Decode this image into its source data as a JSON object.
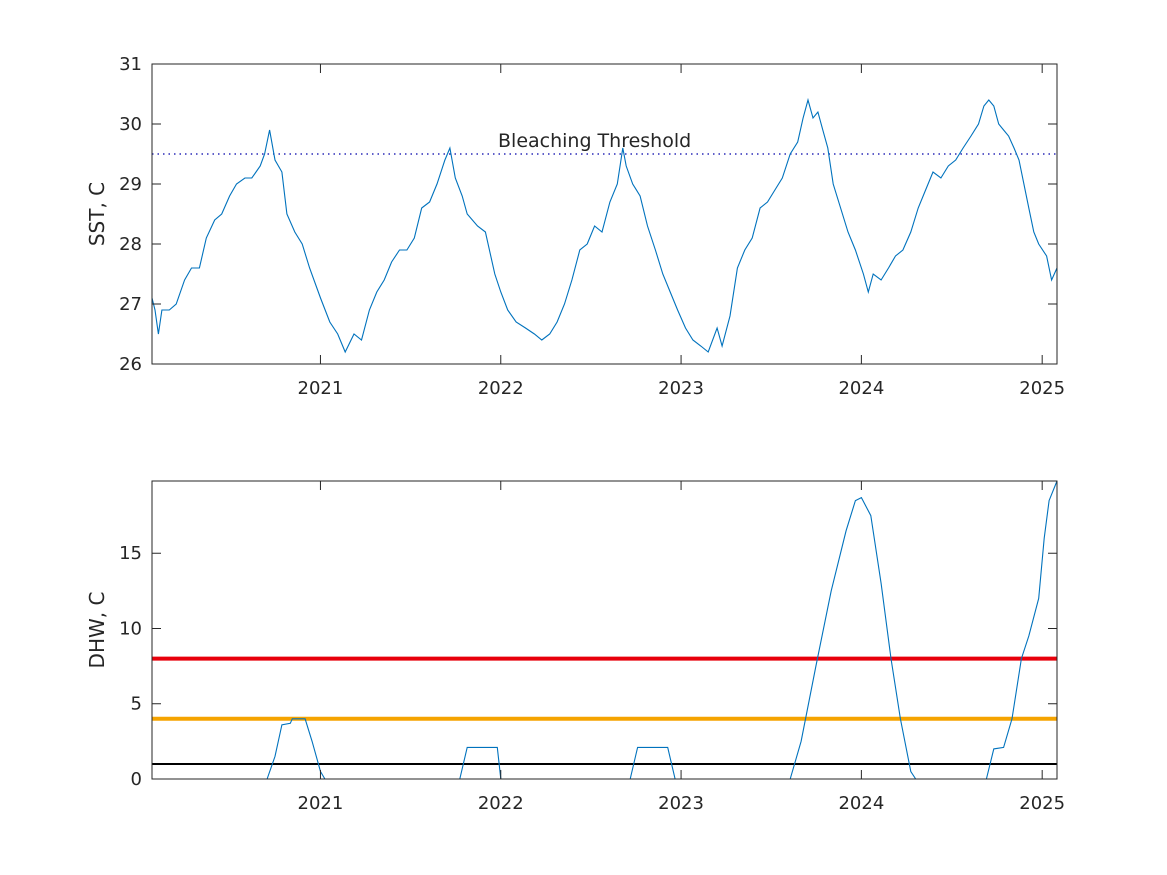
{
  "chart_data": [
    {
      "type": "line",
      "ylabel": "SST, C",
      "xlabel": "",
      "title": "",
      "x_range": [
        "2020-01-26",
        "2025-01-31"
      ],
      "ylim": [
        26,
        31
      ],
      "x_ticks": [
        {
          "date": "2021-01-01",
          "label": "2021"
        },
        {
          "date": "2022-01-01",
          "label": "2022"
        },
        {
          "date": "2023-01-01",
          "label": "2023"
        },
        {
          "date": "2024-01-01",
          "label": "2024"
        },
        {
          "date": "2025-01-01",
          "label": "2025"
        }
      ],
      "y_ticks": [
        26,
        27,
        28,
        29,
        30,
        31
      ],
      "series": [
        {
          "color": "#0072BD",
          "points": [
            [
              "2020-01-26",
              27.1
            ],
            [
              "2020-02-01",
              26.9
            ],
            [
              "2020-02-08",
              26.5
            ],
            [
              "2020-02-15",
              26.9
            ],
            [
              "2020-03-01",
              26.9
            ],
            [
              "2020-03-15",
              27.0
            ],
            [
              "2020-04-01",
              27.4
            ],
            [
              "2020-04-15",
              27.6
            ],
            [
              "2020-05-01",
              27.6
            ],
            [
              "2020-05-15",
              28.1
            ],
            [
              "2020-06-01",
              28.4
            ],
            [
              "2020-06-15",
              28.5
            ],
            [
              "2020-07-01",
              28.8
            ],
            [
              "2020-07-15",
              29.0
            ],
            [
              "2020-08-01",
              29.1
            ],
            [
              "2020-08-15",
              29.1
            ],
            [
              "2020-09-01",
              29.3
            ],
            [
              "2020-09-10",
              29.5
            ],
            [
              "2020-09-20",
              29.9
            ],
            [
              "2020-10-01",
              29.4
            ],
            [
              "2020-10-15",
              29.2
            ],
            [
              "2020-10-25",
              28.5
            ],
            [
              "2020-11-10",
              28.2
            ],
            [
              "2020-11-25",
              28.0
            ],
            [
              "2020-12-10",
              27.6
            ],
            [
              "2021-01-01",
              27.1
            ],
            [
              "2021-01-20",
              26.7
            ],
            [
              "2021-02-05",
              26.5
            ],
            [
              "2021-02-20",
              26.2
            ],
            [
              "2021-03-10",
              26.5
            ],
            [
              "2021-03-25",
              26.4
            ],
            [
              "2021-04-10",
              26.9
            ],
            [
              "2021-04-25",
              27.2
            ],
            [
              "2021-05-10",
              27.4
            ],
            [
              "2021-05-25",
              27.7
            ],
            [
              "2021-06-10",
              27.9
            ],
            [
              "2021-06-25",
              27.9
            ],
            [
              "2021-07-10",
              28.1
            ],
            [
              "2021-07-25",
              28.6
            ],
            [
              "2021-08-10",
              28.7
            ],
            [
              "2021-08-25",
              29.0
            ],
            [
              "2021-09-10",
              29.4
            ],
            [
              "2021-09-20",
              29.6
            ],
            [
              "2021-10-01",
              29.1
            ],
            [
              "2021-10-15",
              28.8
            ],
            [
              "2021-10-25",
              28.5
            ],
            [
              "2021-11-15",
              28.3
            ],
            [
              "2021-12-01",
              28.2
            ],
            [
              "2021-12-20",
              27.5
            ],
            [
              "2022-01-01",
              27.2
            ],
            [
              "2022-01-15",
              26.9
            ],
            [
              "2022-02-01",
              26.7
            ],
            [
              "2022-02-20",
              26.6
            ],
            [
              "2022-03-10",
              26.5
            ],
            [
              "2022-03-25",
              26.4
            ],
            [
              "2022-04-10",
              26.5
            ],
            [
              "2022-04-25",
              26.7
            ],
            [
              "2022-05-10",
              27.0
            ],
            [
              "2022-05-25",
              27.4
            ],
            [
              "2022-06-10",
              27.9
            ],
            [
              "2022-06-25",
              28.0
            ],
            [
              "2022-07-10",
              28.3
            ],
            [
              "2022-07-25",
              28.2
            ],
            [
              "2022-08-10",
              28.7
            ],
            [
              "2022-08-25",
              29.0
            ],
            [
              "2022-09-05",
              29.6
            ],
            [
              "2022-09-12",
              29.3
            ],
            [
              "2022-09-25",
              29.0
            ],
            [
              "2022-10-10",
              28.8
            ],
            [
              "2022-10-25",
              28.3
            ],
            [
              "2022-11-10",
              27.9
            ],
            [
              "2022-11-25",
              27.5
            ],
            [
              "2022-12-10",
              27.2
            ],
            [
              "2022-12-25",
              26.9
            ],
            [
              "2023-01-10",
              26.6
            ],
            [
              "2023-01-25",
              26.4
            ],
            [
              "2023-02-10",
              26.3
            ],
            [
              "2023-02-25",
              26.2
            ],
            [
              "2023-03-15",
              26.6
            ],
            [
              "2023-03-25",
              26.3
            ],
            [
              "2023-04-10",
              26.8
            ],
            [
              "2023-04-25",
              27.6
            ],
            [
              "2023-05-10",
              27.9
            ],
            [
              "2023-05-25",
              28.1
            ],
            [
              "2023-06-10",
              28.6
            ],
            [
              "2023-06-25",
              28.7
            ],
            [
              "2023-07-10",
              28.9
            ],
            [
              "2023-07-25",
              29.1
            ],
            [
              "2023-08-10",
              29.5
            ],
            [
              "2023-08-25",
              29.7
            ],
            [
              "2023-09-05",
              30.1
            ],
            [
              "2023-09-15",
              30.4
            ],
            [
              "2023-09-25",
              30.1
            ],
            [
              "2023-10-05",
              30.2
            ],
            [
              "2023-10-15",
              29.9
            ],
            [
              "2023-10-25",
              29.6
            ],
            [
              "2023-11-05",
              29.0
            ],
            [
              "2023-11-20",
              28.6
            ],
            [
              "2023-12-05",
              28.2
            ],
            [
              "2023-12-20",
              27.9
            ],
            [
              "2024-01-05",
              27.5
            ],
            [
              "2024-01-15",
              27.2
            ],
            [
              "2024-01-25",
              27.5
            ],
            [
              "2024-02-10",
              27.4
            ],
            [
              "2024-02-25",
              27.6
            ],
            [
              "2024-03-10",
              27.8
            ],
            [
              "2024-03-25",
              27.9
            ],
            [
              "2024-04-10",
              28.2
            ],
            [
              "2024-04-25",
              28.6
            ],
            [
              "2024-05-10",
              28.9
            ],
            [
              "2024-05-25",
              29.2
            ],
            [
              "2024-06-10",
              29.1
            ],
            [
              "2024-06-25",
              29.3
            ],
            [
              "2024-07-10",
              29.4
            ],
            [
              "2024-07-25",
              29.6
            ],
            [
              "2024-08-10",
              29.8
            ],
            [
              "2024-08-25",
              30.0
            ],
            [
              "2024-09-05",
              30.3
            ],
            [
              "2024-09-15",
              30.4
            ],
            [
              "2024-09-25",
              30.3
            ],
            [
              "2024-10-05",
              30.0
            ],
            [
              "2024-10-15",
              29.9
            ],
            [
              "2024-10-25",
              29.8
            ],
            [
              "2024-11-05",
              29.6
            ],
            [
              "2024-11-15",
              29.4
            ],
            [
              "2024-11-25",
              29.0
            ],
            [
              "2024-12-05",
              28.6
            ],
            [
              "2024-12-15",
              28.2
            ],
            [
              "2024-12-25",
              28.0
            ],
            [
              "2025-01-10",
              27.8
            ],
            [
              "2025-01-20",
              27.4
            ],
            [
              "2025-01-31",
              27.6
            ]
          ]
        }
      ],
      "reference_lines": [
        {
          "y": 29.5,
          "style": "dotted",
          "color": "#0000aa",
          "label": "Bleaching Threshold"
        }
      ],
      "annotation": "Bleaching Threshold",
      "grid": false,
      "legend": "none"
    },
    {
      "type": "line",
      "ylabel": "DHW, C",
      "xlabel": "",
      "title": "",
      "x_range": [
        "2020-01-26",
        "2025-01-31"
      ],
      "ylim": [
        0,
        19.8
      ],
      "x_ticks": [
        {
          "date": "2021-01-01",
          "label": "2021"
        },
        {
          "date": "2022-01-01",
          "label": "2022"
        },
        {
          "date": "2023-01-01",
          "label": "2023"
        },
        {
          "date": "2024-01-01",
          "label": "2024"
        },
        {
          "date": "2025-01-01",
          "label": "2025"
        }
      ],
      "y_ticks": [
        0,
        5,
        10,
        15
      ],
      "series": [
        {
          "color": "#0072BD",
          "points": [
            [
              "2020-01-26",
              0.0
            ],
            [
              "2020-09-15",
              0.0
            ],
            [
              "2020-10-01",
              1.5
            ],
            [
              "2020-10-15",
              3.6
            ],
            [
              "2020-11-01",
              3.7
            ],
            [
              "2020-11-05",
              4.0
            ],
            [
              "2020-12-01",
              4.0
            ],
            [
              "2020-12-15",
              2.5
            ],
            [
              "2021-01-01",
              0.5
            ],
            [
              "2021-01-10",
              0.0
            ],
            [
              "2021-10-10",
              0.0
            ],
            [
              "2021-10-25",
              2.1
            ],
            [
              "2021-12-25",
              2.1
            ],
            [
              "2022-01-01",
              0.0
            ],
            [
              "2022-09-20",
              0.0
            ],
            [
              "2022-10-05",
              2.1
            ],
            [
              "2022-12-05",
              2.1
            ],
            [
              "2022-12-20",
              0.0
            ],
            [
              "2023-08-10",
              0.0
            ],
            [
              "2023-09-01",
              2.5
            ],
            [
              "2023-10-01",
              7.5
            ],
            [
              "2023-11-01",
              12.5
            ],
            [
              "2023-12-01",
              16.5
            ],
            [
              "2023-12-20",
              18.5
            ],
            [
              "2024-01-01",
              18.7
            ],
            [
              "2024-01-20",
              17.5
            ],
            [
              "2024-02-10",
              13.0
            ],
            [
              "2024-03-01",
              8.0
            ],
            [
              "2024-03-20",
              4.0
            ],
            [
              "2024-04-10",
              0.5
            ],
            [
              "2024-04-20",
              0.0
            ],
            [
              "2024-09-10",
              0.0
            ],
            [
              "2024-09-25",
              2.0
            ],
            [
              "2024-10-15",
              2.1
            ],
            [
              "2024-11-01",
              4.0
            ],
            [
              "2024-11-20",
              8.0
            ],
            [
              "2024-12-05",
              9.5
            ],
            [
              "2024-12-25",
              12.0
            ],
            [
              "2025-01-05",
              16.0
            ],
            [
              "2025-01-15",
              18.5
            ],
            [
              "2025-01-31",
              19.8
            ]
          ]
        }
      ],
      "reference_lines": [
        {
          "y": 8,
          "color": "#e8000b"
        },
        {
          "y": 4,
          "color": "#f5a300"
        },
        {
          "y": 1,
          "color": "#000000"
        }
      ],
      "grid": false,
      "legend": "none"
    }
  ]
}
